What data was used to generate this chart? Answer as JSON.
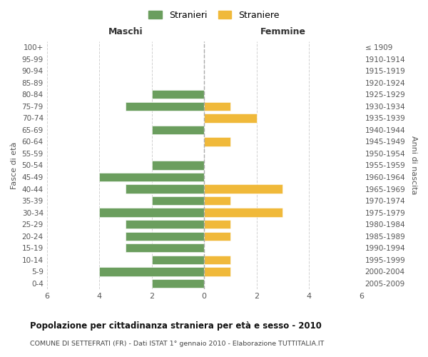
{
  "age_groups": [
    "100+",
    "95-99",
    "90-94",
    "85-89",
    "80-84",
    "75-79",
    "70-74",
    "65-69",
    "60-64",
    "55-59",
    "50-54",
    "45-49",
    "40-44",
    "35-39",
    "30-34",
    "25-29",
    "20-24",
    "15-19",
    "10-14",
    "5-9",
    "0-4"
  ],
  "birth_years": [
    "≤ 1909",
    "1910-1914",
    "1915-1919",
    "1920-1924",
    "1925-1929",
    "1930-1934",
    "1935-1939",
    "1940-1944",
    "1945-1949",
    "1950-1954",
    "1955-1959",
    "1960-1964",
    "1965-1969",
    "1970-1974",
    "1975-1979",
    "1980-1984",
    "1985-1989",
    "1990-1994",
    "1995-1999",
    "2000-2004",
    "2005-2009"
  ],
  "males": [
    0,
    0,
    0,
    0,
    2,
    3,
    0,
    2,
    0,
    0,
    2,
    4,
    3,
    2,
    4,
    3,
    3,
    3,
    2,
    4,
    2
  ],
  "females": [
    0,
    0,
    0,
    0,
    0,
    1,
    2,
    0,
    1,
    0,
    0,
    0,
    3,
    1,
    3,
    1,
    1,
    0,
    1,
    1,
    0
  ],
  "color_males": "#6b9e5e",
  "color_females": "#f0b93a",
  "title": "Popolazione per cittadinanza straniera per età e sesso - 2010",
  "subtitle": "COMUNE DI SETTEFRATI (FR) - Dati ISTAT 1° gennaio 2010 - Elaborazione TUTTITALIA.IT",
  "xlabel_left": "Maschi",
  "xlabel_right": "Femmine",
  "ylabel_left": "Fasce di età",
  "ylabel_right": "Anni di nascita",
  "legend_males": "Stranieri",
  "legend_females": "Straniere",
  "xlim": 6,
  "background_color": "#ffffff",
  "grid_color": "#cccccc"
}
